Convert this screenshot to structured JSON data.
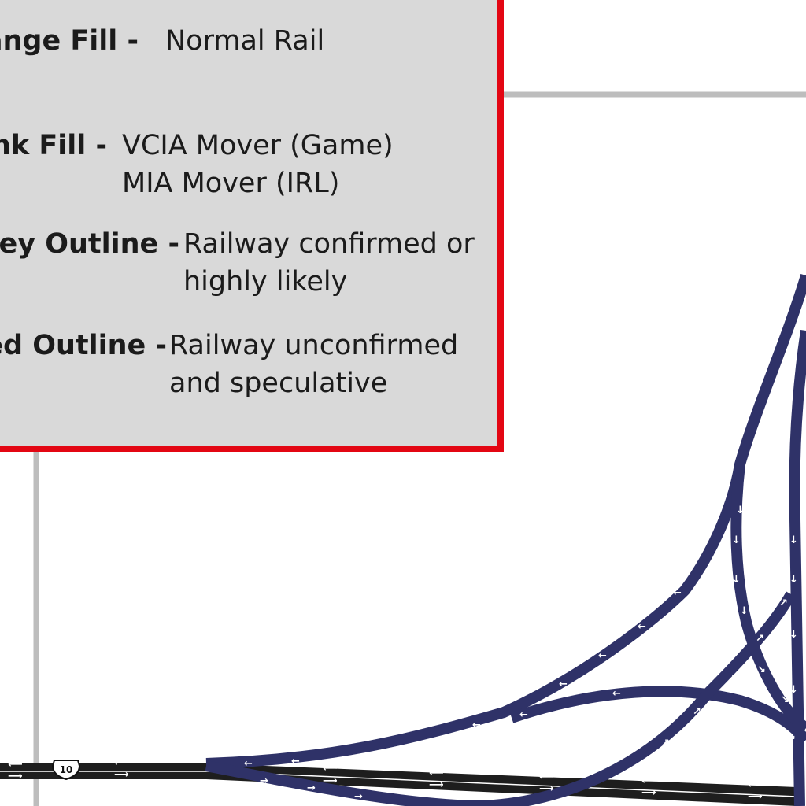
{
  "legend": {
    "entries": [
      {
        "key": "Orange Fill -",
        "desc": [
          "Normal Rail"
        ]
      },
      {
        "key": "Pink Fill -",
        "desc": [
          "VCIA Mover (Game)",
          "MIA Mover (IRL)"
        ]
      },
      {
        "key": "Grey Outline -",
        "desc": [
          "Railway confirmed or",
          "highly likely"
        ]
      },
      {
        "key": "Red Outline -",
        "desc": [
          "Railway unconfirmed",
          "and speculative"
        ]
      }
    ]
  },
  "road": {
    "shield_number": "10"
  },
  "colors": {
    "legend_background": "#d9d9d9",
    "legend_border": "#e30613",
    "ramp_fill": "#2f3268",
    "highway_fill": "#1e1e1e",
    "grid_line": "#bdbdbd"
  }
}
